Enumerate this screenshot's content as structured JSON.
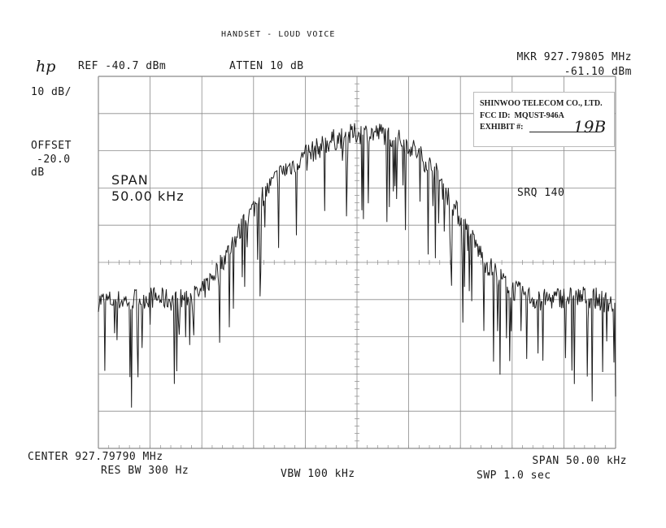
{
  "header": {
    "title": "HANDSET - LOUD VOICE",
    "logo": "hp",
    "ref_level": "REF -40.7 dBm",
    "attenuation": "ATTEN 10 dB",
    "marker_frequency": "MKR 927.79805 MHz",
    "marker_level": "-61.10 dBm",
    "scale": "10 dB/",
    "offset_label": "OFFSET",
    "offset_value": "-20.0",
    "offset_unit": "dB",
    "srq": "SRQ 140"
  },
  "overlay": {
    "span_label": "SPAN",
    "span_value": "50.00 kHz"
  },
  "footer": {
    "center": "CENTER 927.79790 MHz",
    "span": "SPAN 50.00 kHz",
    "res_bw": "RES BW 300 Hz",
    "vbw": "VBW 100 kHz",
    "sweep": "SWP 1.0 sec"
  },
  "stamp": {
    "company": "SHINWOO TELECOM CO., LTD.",
    "fcc_id": "FCC ID:  MQUST-946A",
    "exhibit_label": "EXHIBIT #:",
    "exhibit_number": "19B"
  },
  "colors": {
    "trace": "#1f1f1f",
    "grid": "#8a8a8a",
    "background": "#ffffff"
  },
  "chart_data": {
    "type": "line",
    "title": "HANDSET - LOUD VOICE",
    "x_unit": "kHz offset from center 927.79790 MHz",
    "y_unit": "dBm",
    "xlim": [
      -25,
      25
    ],
    "ylim": [
      -140.7,
      -40.7
    ],
    "grid": true,
    "divisions": {
      "x": 10,
      "y": 10
    },
    "series": [
      {
        "x": [
          -25,
          -22.5,
          -20,
          -17.5,
          -15,
          -12.5,
          -10,
          -7.5,
          -5,
          -2.5,
          0,
          2.5,
          5,
          7.5,
          10,
          12.5,
          15,
          17.5,
          20,
          22.5,
          25
        ],
        "values": [
          -101,
          -101,
          -100,
          -101,
          -99,
          -88,
          -76,
          -67,
          -62,
          -58,
          -56,
          -56,
          -59,
          -66,
          -79,
          -91,
          -98,
          -101,
          -100,
          -100,
          -102
        ]
      }
    ],
    "marker": {
      "frequency_mhz": 927.79805,
      "level_dbm": -61.1
    }
  }
}
